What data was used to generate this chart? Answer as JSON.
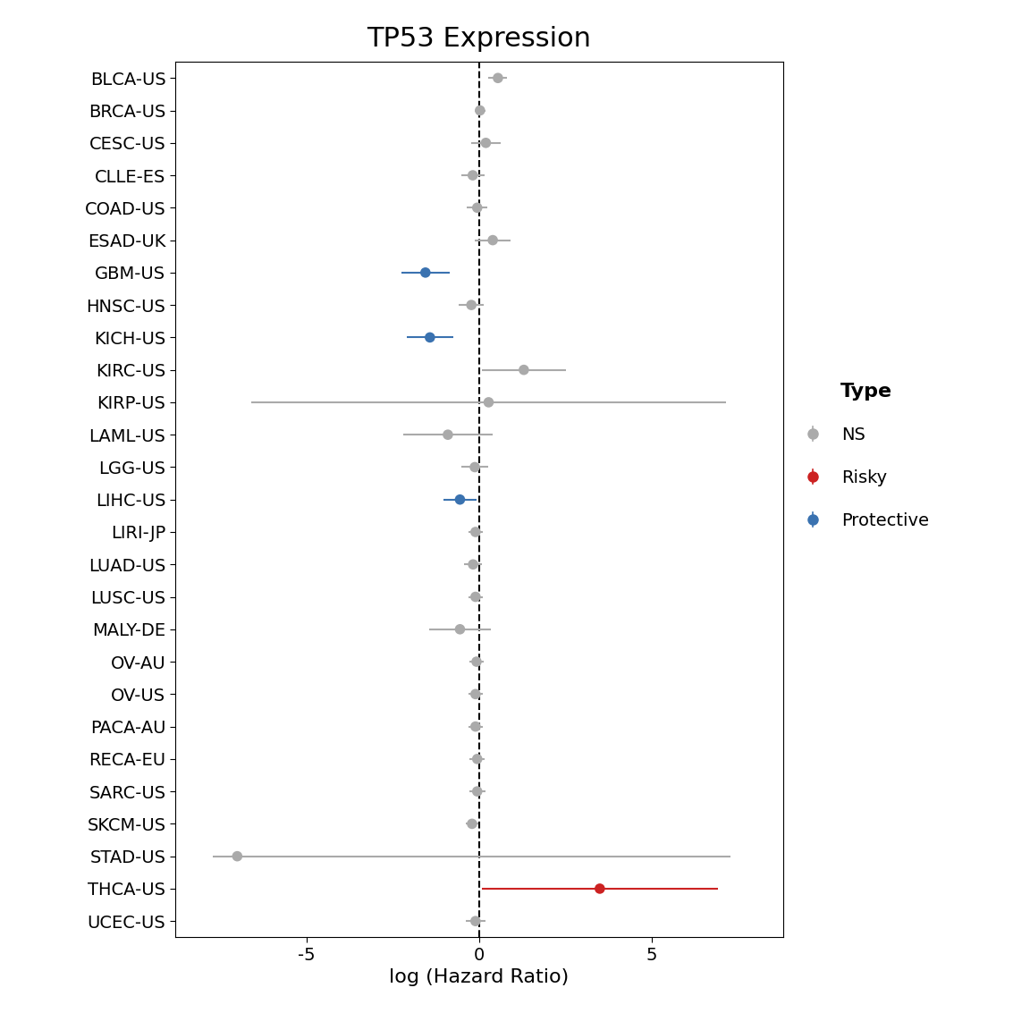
{
  "title": "TP53 Expression",
  "xlabel": "log (Hazard Ratio)",
  "categories": [
    "BLCA-US",
    "BRCA-US",
    "CESC-US",
    "CLLE-ES",
    "COAD-US",
    "ESAD-UK",
    "GBM-US",
    "HNSC-US",
    "KICH-US",
    "KIRC-US",
    "KIRP-US",
    "LAML-US",
    "LGG-US",
    "LIHC-US",
    "LIRI-JP",
    "LUAD-US",
    "LUSC-US",
    "MALY-DE",
    "OV-AU",
    "OV-US",
    "PACA-AU",
    "RECA-EU",
    "SARC-US",
    "SKCM-US",
    "STAD-US",
    "THCA-US",
    "UCEC-US"
  ],
  "hr": [
    0.55,
    0.03,
    0.2,
    -0.18,
    -0.05,
    0.4,
    -1.55,
    -0.22,
    -1.42,
    1.3,
    0.28,
    -0.9,
    -0.12,
    -0.55,
    -0.1,
    -0.17,
    -0.1,
    -0.55,
    -0.07,
    -0.1,
    -0.1,
    -0.05,
    -0.05,
    -0.2,
    -7.0,
    3.5,
    -0.1
  ],
  "ci_low": [
    0.28,
    -0.12,
    -0.22,
    -0.52,
    -0.35,
    -0.12,
    -2.25,
    -0.58,
    -2.1,
    0.08,
    -6.6,
    -2.2,
    -0.5,
    -1.02,
    -0.3,
    -0.42,
    -0.3,
    -1.45,
    -0.28,
    -0.3,
    -0.3,
    -0.27,
    -0.28,
    -0.37,
    -7.7,
    0.08,
    -0.38
  ],
  "ci_high": [
    0.82,
    0.18,
    0.62,
    0.16,
    0.25,
    0.92,
    -0.85,
    0.14,
    -0.74,
    2.52,
    7.16,
    0.4,
    0.26,
    -0.08,
    0.1,
    0.08,
    0.1,
    0.35,
    0.14,
    0.1,
    0.1,
    0.17,
    0.18,
    -0.03,
    7.28,
    6.92,
    0.18
  ],
  "types": [
    "NS",
    "NS",
    "NS",
    "NS",
    "NS",
    "NS",
    "Protective",
    "NS",
    "Protective",
    "NS",
    "NS",
    "NS",
    "NS",
    "Protective",
    "NS",
    "NS",
    "NS",
    "NS",
    "NS",
    "NS",
    "NS",
    "NS",
    "NS",
    "NS",
    "NS",
    "Risky",
    "NS"
  ],
  "color_ns": "#aaaaaa",
  "color_risky": "#cc2222",
  "color_protective": "#3a72b0",
  "xlim": [
    -8.8,
    8.8
  ],
  "xticks": [
    -5,
    0,
    5
  ],
  "dpi": 100,
  "title_fontsize": 22,
  "axis_label_fontsize": 16,
  "tick_fontsize": 14,
  "ytick_fontsize": 14,
  "marker_size": 70,
  "linewidth": 1.5,
  "bg_color": "#ffffff",
  "legend_title_fontsize": 16,
  "legend_fontsize": 14
}
